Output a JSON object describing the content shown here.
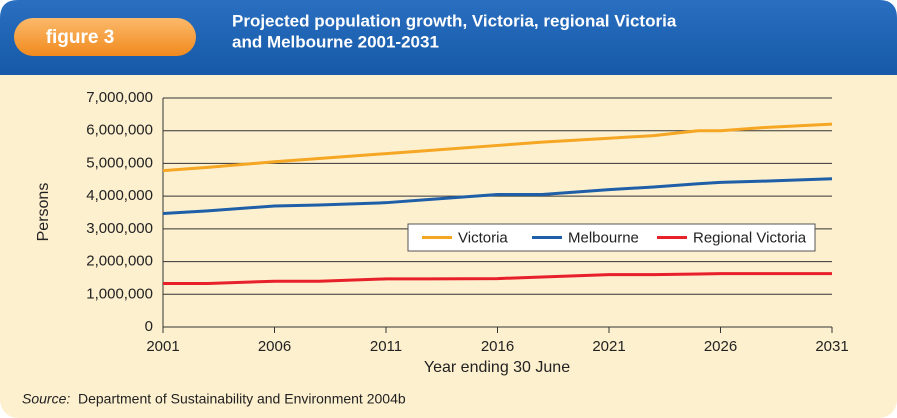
{
  "figure_label": "figure 3",
  "chart_data": {
    "type": "line",
    "title": [
      "Projected population growth, Victoria, regional Victoria",
      "and Melbourne 2001-2031"
    ],
    "x_label": "Year ending 30 June",
    "y_label": "Persons",
    "x": [
      2001,
      2003,
      2006,
      2008,
      2011,
      2013,
      2016,
      2018,
      2021,
      2023,
      2025,
      2026,
      2028,
      2031
    ],
    "series": [
      {
        "name": "Victoria",
        "color": "#f5a623",
        "values": [
          4780000,
          4880000,
          5050000,
          5150000,
          5300000,
          5400000,
          5550000,
          5650000,
          5770000,
          5850000,
          6000000,
          6000000,
          6100000,
          6200000
        ]
      },
      {
        "name": "Melbourne",
        "color": "#1f5fa8",
        "values": [
          3470000,
          3550000,
          3700000,
          3730000,
          3800000,
          3900000,
          4050000,
          4050000,
          4200000,
          4280000,
          4380000,
          4420000,
          4460000,
          4530000
        ]
      },
      {
        "name": "Regional Victoria",
        "color": "#e8202a",
        "values": [
          1330000,
          1330000,
          1400000,
          1400000,
          1470000,
          1470000,
          1480000,
          1530000,
          1600000,
          1600000,
          1620000,
          1630000,
          1630000,
          1630000
        ]
      }
    ],
    "xlim": [
      2001,
      2031
    ],
    "xticks": [
      2001,
      2006,
      2011,
      2016,
      2021,
      2026,
      2031
    ],
    "ylim": [
      0,
      7000000
    ],
    "yticks": [
      0,
      {
        "value": 1000000,
        "label": "1,000,000"
      },
      {
        "value": 2000000,
        "label": "2,000,000"
      },
      {
        "value": 3000000,
        "label": "3,000,000"
      },
      {
        "value": 4000000,
        "label": "4,000,000"
      },
      {
        "value": 5000000,
        "label": "5,000,000"
      },
      {
        "value": 6000000,
        "label": "6,000,000"
      },
      {
        "value": 7000000,
        "label": "7,000,000"
      }
    ],
    "grid": true,
    "legend": "center-right"
  },
  "source_label": "Source:",
  "source_text": "Department of Sustainability and Environment 2004b"
}
